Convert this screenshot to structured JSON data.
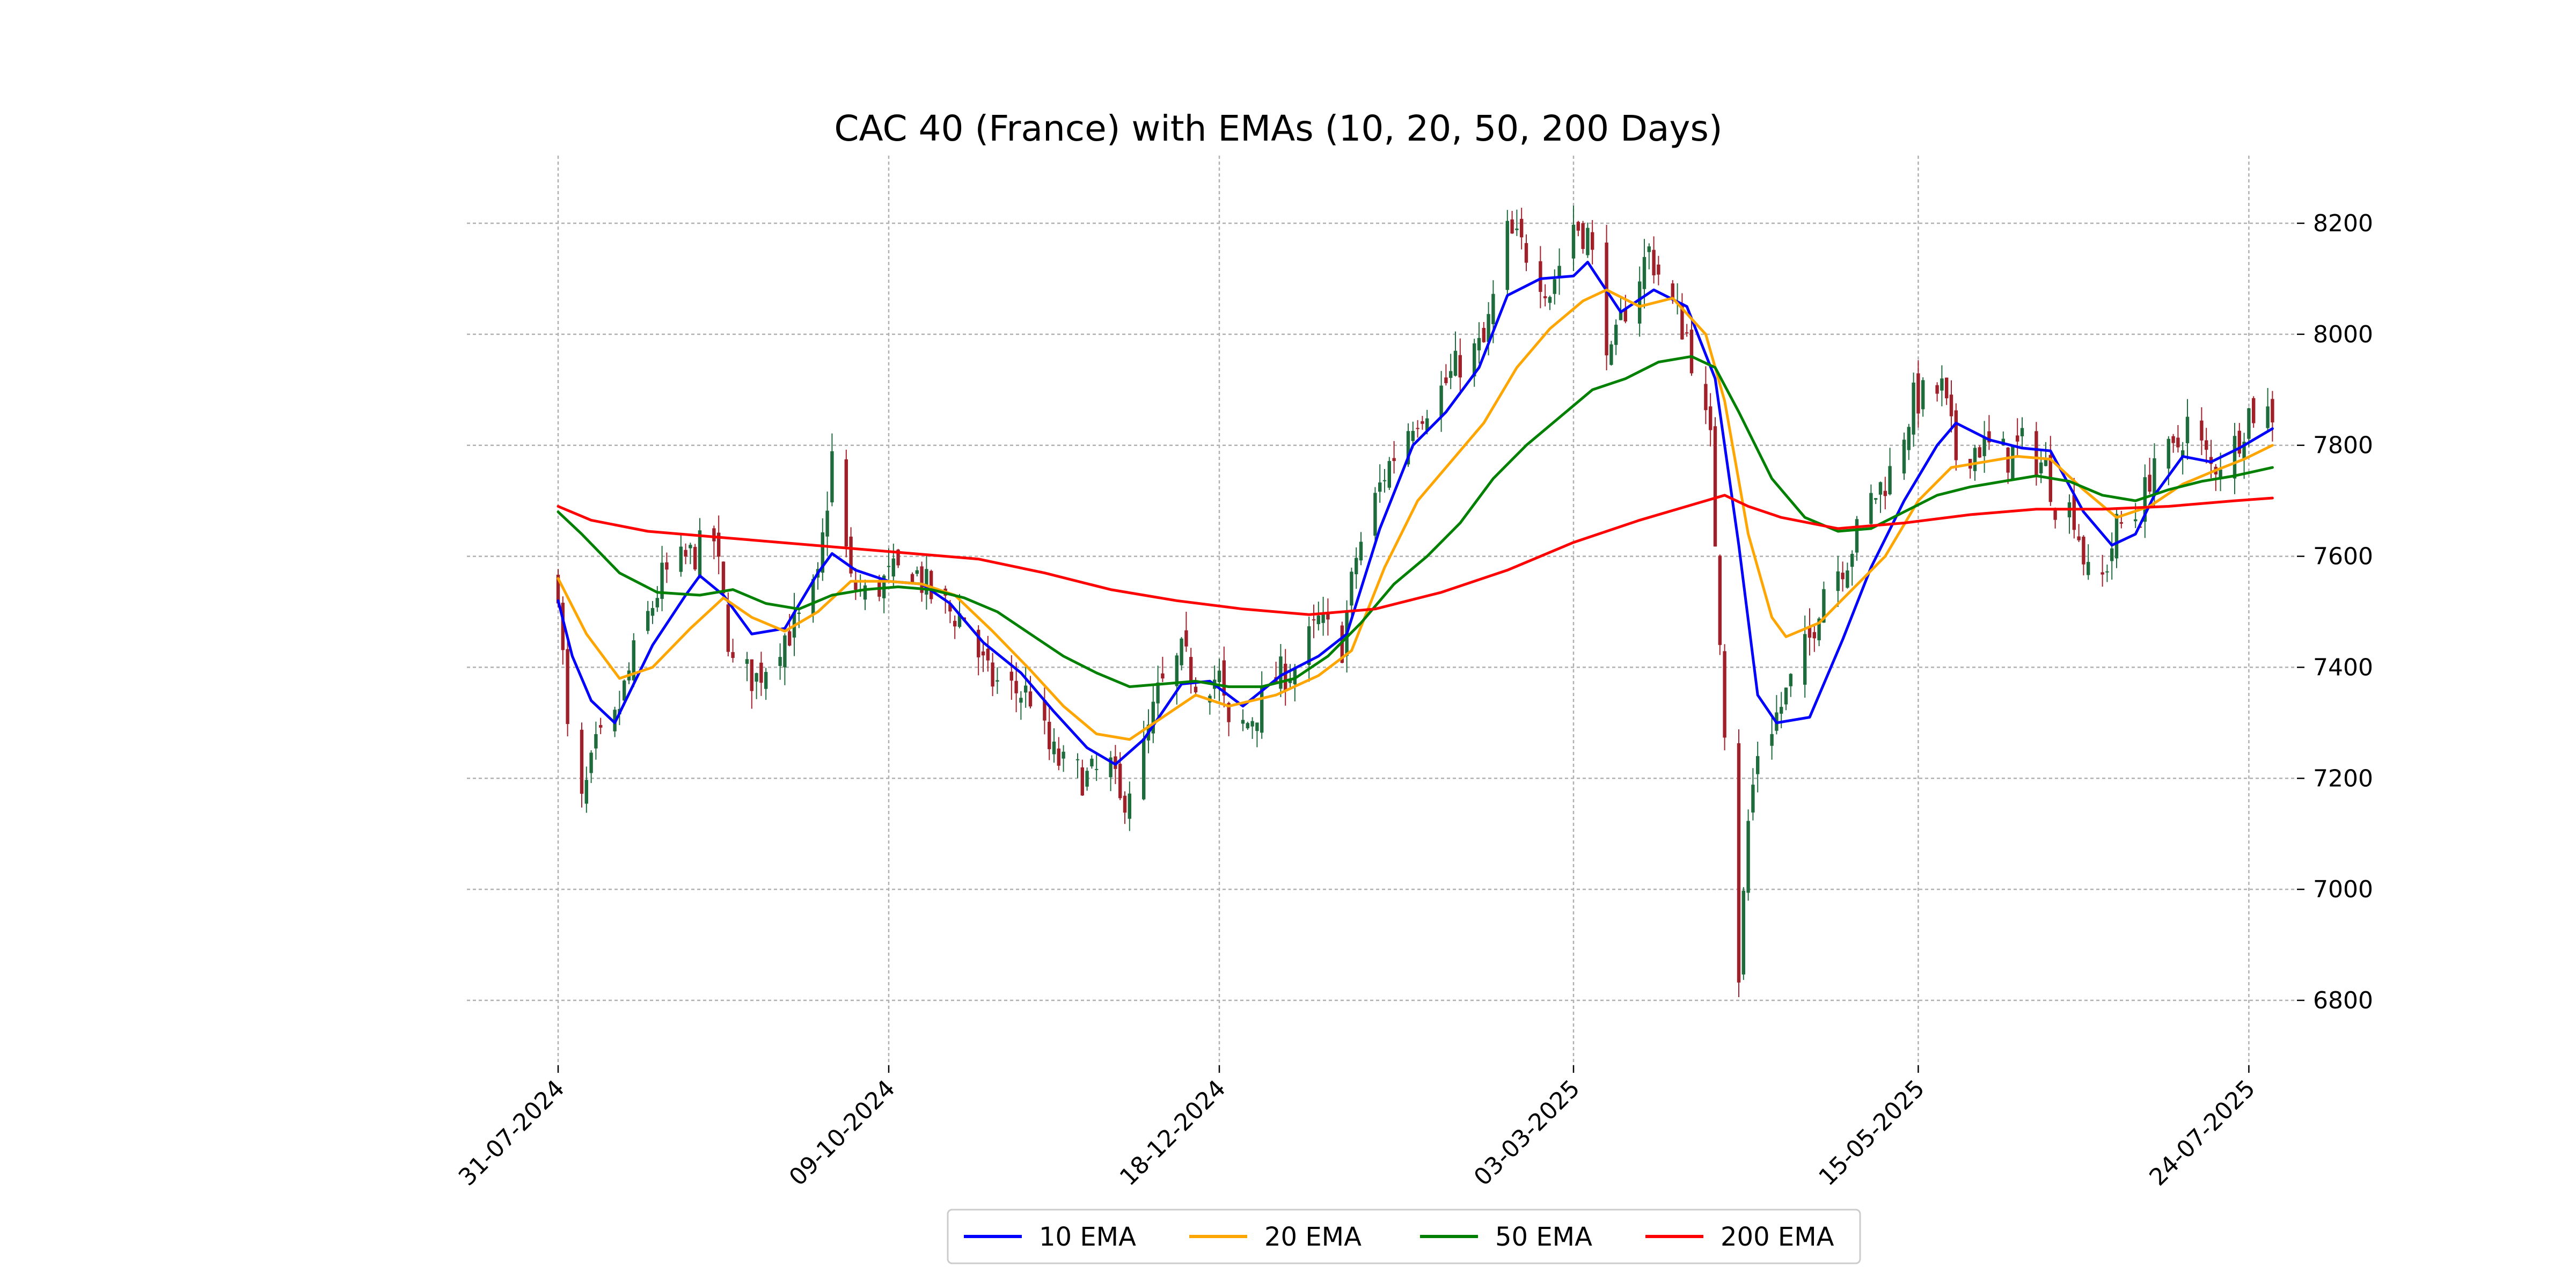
{
  "chart_data": {
    "type": "candlestick",
    "title": "CAC 40 (France) with EMAs (10, 20, 50, 200 Days)",
    "xlabel": "",
    "ylabel": "",
    "ylim": [
      6700,
      8320
    ],
    "y_ticks": [
      6800,
      7000,
      7200,
      7400,
      7600,
      7800,
      8000,
      8200
    ],
    "x_range": [
      "2024-07-31",
      "2025-07-29"
    ],
    "x_ticks": [
      "31-07-2024",
      "09-10-2024",
      "18-12-2024",
      "03-03-2025",
      "15-05-2025",
      "24-07-2025"
    ],
    "y_axis_side": "right",
    "grid": true,
    "legend": {
      "placement": "bottom-center",
      "entries": [
        "10 EMA",
        "20 EMA",
        "50 EMA",
        "200 EMA"
      ]
    },
    "colors": {
      "up": "#1e6b3c",
      "down": "#a0202a",
      "ema10": "#0000ff",
      "ema20": "#ffa500",
      "ema50": "#008000",
      "ema200": "#ff0000"
    },
    "price_anchors": [
      [
        "2024-07-31",
        7550
      ],
      [
        "2024-08-02",
        7280
      ],
      [
        "2024-08-05",
        7150
      ],
      [
        "2024-08-08",
        7250
      ],
      [
        "2024-08-12",
        7300
      ],
      [
        "2024-08-16",
        7420
      ],
      [
        "2024-08-22",
        7560
      ],
      [
        "2024-08-28",
        7600
      ],
      [
        "2024-09-02",
        7630
      ],
      [
        "2024-09-06",
        7400
      ],
      [
        "2024-09-11",
        7380
      ],
      [
        "2024-09-16",
        7450
      ],
      [
        "2024-09-20",
        7480
      ],
      [
        "2024-09-24",
        7550
      ],
      [
        "2024-09-27",
        7780
      ],
      [
        "2024-10-01",
        7550
      ],
      [
        "2024-10-04",
        7530
      ],
      [
        "2024-10-09",
        7560
      ],
      [
        "2024-10-14",
        7580
      ],
      [
        "2024-10-18",
        7530
      ],
      [
        "2024-10-22",
        7500
      ],
      [
        "2024-10-25",
        7490
      ],
      [
        "2024-10-30",
        7380
      ],
      [
        "2024-11-04",
        7360
      ],
      [
        "2024-11-08",
        7350
      ],
      [
        "2024-11-12",
        7250
      ],
      [
        "2024-11-15",
        7220
      ],
      [
        "2024-11-20",
        7200
      ],
      [
        "2024-11-25",
        7220
      ],
      [
        "2024-11-27",
        7150
      ],
      [
        "2024-12-02",
        7250
      ],
      [
        "2024-12-05",
        7350
      ],
      [
        "2024-12-10",
        7420
      ],
      [
        "2024-12-13",
        7380
      ],
      [
        "2024-12-18",
        7380
      ],
      [
        "2024-12-20",
        7280
      ],
      [
        "2024-12-24",
        7300
      ],
      [
        "2024-12-30",
        7380
      ],
      [
        "2025-01-03",
        7400
      ],
      [
        "2025-01-08",
        7480
      ],
      [
        "2025-01-13",
        7440
      ],
      [
        "2025-01-16",
        7600
      ],
      [
        "2025-01-22",
        7750
      ],
      [
        "2025-01-28",
        7850
      ],
      [
        "2025-02-03",
        7900
      ],
      [
        "2025-02-07",
        7950
      ],
      [
        "2025-02-12",
        7980
      ],
      [
        "2025-02-17",
        8180
      ],
      [
        "2025-02-21",
        8150
      ],
      [
        "2025-02-26",
        8080
      ],
      [
        "2025-03-03",
        8200
      ],
      [
        "2025-03-06",
        8180
      ],
      [
        "2025-03-11",
        7950
      ],
      [
        "2025-03-14",
        8050
      ],
      [
        "2025-03-19",
        8150
      ],
      [
        "2025-03-24",
        8050
      ],
      [
        "2025-03-27",
        8000
      ],
      [
        "2025-04-01",
        7800
      ],
      [
        "2025-04-04",
        7300
      ],
      [
        "2025-04-07",
        6850
      ],
      [
        "2025-04-09",
        7120
      ],
      [
        "2025-04-11",
        7250
      ],
      [
        "2025-04-16",
        7330
      ],
      [
        "2025-04-22",
        7450
      ],
      [
        "2025-04-25",
        7550
      ],
      [
        "2025-04-30",
        7600
      ],
      [
        "2025-05-05",
        7700
      ],
      [
        "2025-05-09",
        7750
      ],
      [
        "2025-05-14",
        7880
      ],
      [
        "2025-05-20",
        7900
      ],
      [
        "2025-05-23",
        7780
      ],
      [
        "2025-05-28",
        7800
      ],
      [
        "2025-06-03",
        7780
      ],
      [
        "2025-06-06",
        7800
      ],
      [
        "2025-06-11",
        7760
      ],
      [
        "2025-06-13",
        7700
      ],
      [
        "2025-06-17",
        7680
      ],
      [
        "2025-06-20",
        7560
      ],
      [
        "2025-06-23",
        7560
      ],
      [
        "2025-06-26",
        7650
      ],
      [
        "2025-07-01",
        7680
      ],
      [
        "2025-07-04",
        7780
      ],
      [
        "2025-07-08",
        7780
      ],
      [
        "2025-07-11",
        7840
      ],
      [
        "2025-07-16",
        7760
      ],
      [
        "2025-07-21",
        7800
      ],
      [
        "2025-07-24",
        7860
      ],
      [
        "2025-07-29",
        7860
      ]
    ],
    "series": [
      {
        "name": "10 EMA",
        "values": [
          [
            "2024-07-31",
            7520
          ],
          [
            "2024-08-03",
            7420
          ],
          [
            "2024-08-07",
            7340
          ],
          [
            "2024-08-12",
            7300
          ],
          [
            "2024-08-20",
            7440
          ],
          [
            "2024-08-27",
            7530
          ],
          [
            "2024-08-30",
            7565
          ],
          [
            "2024-09-04",
            7530
          ],
          [
            "2024-09-10",
            7460
          ],
          [
            "2024-09-17",
            7470
          ],
          [
            "2024-09-24",
            7570
          ],
          [
            "2024-09-27",
            7605
          ],
          [
            "2024-10-02",
            7575
          ],
          [
            "2024-10-09",
            7555
          ],
          [
            "2024-10-16",
            7550
          ],
          [
            "2024-10-22",
            7515
          ],
          [
            "2024-10-29",
            7445
          ],
          [
            "2024-11-06",
            7390
          ],
          [
            "2024-11-13",
            7320
          ],
          [
            "2024-11-20",
            7255
          ],
          [
            "2024-11-26",
            7225
          ],
          [
            "2024-12-02",
            7270
          ],
          [
            "2024-12-10",
            7370
          ],
          [
            "2024-12-16",
            7375
          ],
          [
            "2024-12-23",
            7330
          ],
          [
            "2024-12-31",
            7385
          ],
          [
            "2025-01-08",
            7420
          ],
          [
            "2025-01-14",
            7460
          ],
          [
            "2025-01-21",
            7650
          ],
          [
            "2025-01-28",
            7800
          ],
          [
            "2025-02-04",
            7860
          ],
          [
            "2025-02-11",
            7940
          ],
          [
            "2025-02-17",
            8070
          ],
          [
            "2025-02-24",
            8100
          ],
          [
            "2025-03-03",
            8105
          ],
          [
            "2025-03-06",
            8130
          ],
          [
            "2025-03-13",
            8040
          ],
          [
            "2025-03-20",
            8080
          ],
          [
            "2025-03-27",
            8050
          ],
          [
            "2025-04-02",
            7920
          ],
          [
            "2025-04-07",
            7620
          ],
          [
            "2025-04-11",
            7350
          ],
          [
            "2025-04-15",
            7300
          ],
          [
            "2025-04-22",
            7310
          ],
          [
            "2025-04-29",
            7450
          ],
          [
            "2025-05-05",
            7580
          ],
          [
            "2025-05-12",
            7700
          ],
          [
            "2025-05-19",
            7800
          ],
          [
            "2025-05-23",
            7840
          ],
          [
            "2025-05-30",
            7810
          ],
          [
            "2025-06-06",
            7795
          ],
          [
            "2025-06-12",
            7790
          ],
          [
            "2025-06-19",
            7680
          ],
          [
            "2025-06-25",
            7620
          ],
          [
            "2025-06-30",
            7640
          ],
          [
            "2025-07-04",
            7710
          ],
          [
            "2025-07-10",
            7780
          ],
          [
            "2025-07-16",
            7770
          ],
          [
            "2025-07-22",
            7795
          ],
          [
            "2025-07-29",
            7830
          ]
        ]
      },
      {
        "name": "20 EMA",
        "values": [
          [
            "2024-07-31",
            7560
          ],
          [
            "2024-08-06",
            7460
          ],
          [
            "2024-08-13",
            7380
          ],
          [
            "2024-08-20",
            7400
          ],
          [
            "2024-08-28",
            7470
          ],
          [
            "2024-09-04",
            7525
          ],
          [
            "2024-09-10",
            7490
          ],
          [
            "2024-09-17",
            7465
          ],
          [
            "2024-09-24",
            7500
          ],
          [
            "2024-10-01",
            7555
          ],
          [
            "2024-10-09",
            7555
          ],
          [
            "2024-10-16",
            7550
          ],
          [
            "2024-10-23",
            7530
          ],
          [
            "2024-10-31",
            7465
          ],
          [
            "2024-11-08",
            7395
          ],
          [
            "2024-11-15",
            7330
          ],
          [
            "2024-11-22",
            7280
          ],
          [
            "2024-11-29",
            7270
          ],
          [
            "2024-12-06",
            7310
          ],
          [
            "2024-12-13",
            7350
          ],
          [
            "2024-12-20",
            7330
          ],
          [
            "2024-12-30",
            7350
          ],
          [
            "2025-01-08",
            7385
          ],
          [
            "2025-01-15",
            7430
          ],
          [
            "2025-01-22",
            7580
          ],
          [
            "2025-01-29",
            7700
          ],
          [
            "2025-02-05",
            7770
          ],
          [
            "2025-02-12",
            7840
          ],
          [
            "2025-02-19",
            7940
          ],
          [
            "2025-02-26",
            8010
          ],
          [
            "2025-03-05",
            8060
          ],
          [
            "2025-03-10",
            8080
          ],
          [
            "2025-03-17",
            8050
          ],
          [
            "2025-03-24",
            8065
          ],
          [
            "2025-03-31",
            8000
          ],
          [
            "2025-04-04",
            7880
          ],
          [
            "2025-04-09",
            7640
          ],
          [
            "2025-04-14",
            7490
          ],
          [
            "2025-04-17",
            7455
          ],
          [
            "2025-04-24",
            7480
          ],
          [
            "2025-05-01",
            7540
          ],
          [
            "2025-05-08",
            7600
          ],
          [
            "2025-05-15",
            7700
          ],
          [
            "2025-05-22",
            7760
          ],
          [
            "2025-05-29",
            7770
          ],
          [
            "2025-06-05",
            7780
          ],
          [
            "2025-06-12",
            7775
          ],
          [
            "2025-06-19",
            7720
          ],
          [
            "2025-06-26",
            7670
          ],
          [
            "2025-07-03",
            7690
          ],
          [
            "2025-07-10",
            7730
          ],
          [
            "2025-07-17",
            7755
          ],
          [
            "2025-07-23",
            7775
          ],
          [
            "2025-07-29",
            7800
          ]
        ]
      },
      {
        "name": "50 EMA",
        "values": [
          [
            "2024-07-31",
            7680
          ],
          [
            "2024-08-05",
            7640
          ],
          [
            "2024-08-13",
            7570
          ],
          [
            "2024-08-21",
            7535
          ],
          [
            "2024-08-30",
            7530
          ],
          [
            "2024-09-06",
            7540
          ],
          [
            "2024-09-13",
            7515
          ],
          [
            "2024-09-20",
            7505
          ],
          [
            "2024-09-27",
            7530
          ],
          [
            "2024-10-04",
            7540
          ],
          [
            "2024-10-11",
            7545
          ],
          [
            "2024-10-18",
            7540
          ],
          [
            "2024-10-25",
            7525
          ],
          [
            "2024-11-01",
            7500
          ],
          [
            "2024-11-08",
            7460
          ],
          [
            "2024-11-15",
            7420
          ],
          [
            "2024-11-22",
            7390
          ],
          [
            "2024-11-29",
            7365
          ],
          [
            "2024-12-06",
            7370
          ],
          [
            "2024-12-13",
            7375
          ],
          [
            "2024-12-20",
            7365
          ],
          [
            "2024-12-27",
            7365
          ],
          [
            "2025-01-03",
            7380
          ],
          [
            "2025-01-10",
            7420
          ],
          [
            "2025-01-17",
            7480
          ],
          [
            "2025-01-24",
            7550
          ],
          [
            "2025-01-31",
            7600
          ],
          [
            "2025-02-07",
            7660
          ],
          [
            "2025-02-14",
            7740
          ],
          [
            "2025-02-21",
            7800
          ],
          [
            "2025-02-28",
            7850
          ],
          [
            "2025-03-07",
            7900
          ],
          [
            "2025-03-14",
            7920
          ],
          [
            "2025-03-21",
            7950
          ],
          [
            "2025-03-28",
            7960
          ],
          [
            "2025-04-02",
            7940
          ],
          [
            "2025-04-07",
            7860
          ],
          [
            "2025-04-14",
            7740
          ],
          [
            "2025-04-21",
            7670
          ],
          [
            "2025-04-28",
            7645
          ],
          [
            "2025-05-05",
            7650
          ],
          [
            "2025-05-12",
            7680
          ],
          [
            "2025-05-19",
            7710
          ],
          [
            "2025-05-26",
            7725
          ],
          [
            "2025-06-02",
            7735
          ],
          [
            "2025-06-09",
            7745
          ],
          [
            "2025-06-16",
            7735
          ],
          [
            "2025-06-23",
            7710
          ],
          [
            "2025-06-30",
            7700
          ],
          [
            "2025-07-07",
            7720
          ],
          [
            "2025-07-14",
            7735
          ],
          [
            "2025-07-21",
            7745
          ],
          [
            "2025-07-29",
            7760
          ]
        ]
      },
      {
        "name": "200 EMA",
        "values": [
          [
            "2024-07-31",
            7690
          ],
          [
            "2024-08-07",
            7665
          ],
          [
            "2024-08-19",
            7645
          ],
          [
            "2024-09-02",
            7635
          ],
          [
            "2024-09-16",
            7625
          ],
          [
            "2024-09-30",
            7615
          ],
          [
            "2024-10-14",
            7605
          ],
          [
            "2024-10-28",
            7595
          ],
          [
            "2024-11-11",
            7570
          ],
          [
            "2024-11-25",
            7540
          ],
          [
            "2024-12-09",
            7520
          ],
          [
            "2024-12-23",
            7505
          ],
          [
            "2025-01-06",
            7495
          ],
          [
            "2025-01-20",
            7505
          ],
          [
            "2025-02-03",
            7535
          ],
          [
            "2025-02-17",
            7575
          ],
          [
            "2025-03-03",
            7625
          ],
          [
            "2025-03-17",
            7665
          ],
          [
            "2025-03-31",
            7700
          ],
          [
            "2025-04-04",
            7710
          ],
          [
            "2025-04-09",
            7690
          ],
          [
            "2025-04-16",
            7670
          ],
          [
            "2025-04-28",
            7650
          ],
          [
            "2025-05-12",
            7660
          ],
          [
            "2025-05-26",
            7675
          ],
          [
            "2025-06-09",
            7685
          ],
          [
            "2025-06-23",
            7685
          ],
          [
            "2025-07-07",
            7690
          ],
          [
            "2025-07-21",
            7700
          ],
          [
            "2025-07-29",
            7705
          ]
        ]
      }
    ]
  }
}
